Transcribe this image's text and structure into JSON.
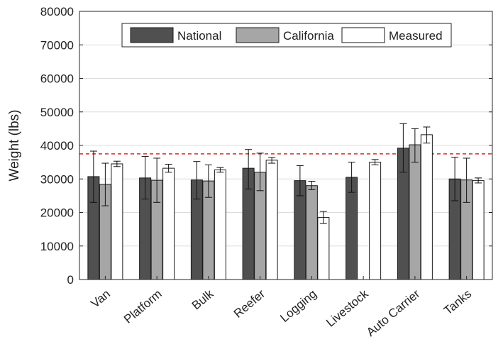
{
  "chart_data": {
    "type": "bar",
    "title": "",
    "xlabel": "",
    "ylabel": "Weight (lbs)",
    "ylim": [
      0,
      80000
    ],
    "yticks": [
      0,
      10000,
      20000,
      30000,
      40000,
      50000,
      60000,
      70000,
      80000
    ],
    "grid": "horizontal",
    "legend_position": "top-center",
    "categories": [
      "Van",
      "Platform",
      "Bulk",
      "Reefer",
      "Logging",
      "Livestock",
      "Auto Carrier",
      "Tanks"
    ],
    "series": [
      {
        "name": "National",
        "color": "#505050",
        "values": [
          30700,
          30300,
          29700,
          33200,
          29500,
          30500,
          39200,
          30000
        ],
        "err_low": [
          23000,
          24000,
          24000,
          27000,
          25000,
          26000,
          32000,
          23500
        ],
        "err_high": [
          38300,
          36700,
          35200,
          38800,
          34000,
          35000,
          46500,
          36500
        ]
      },
      {
        "name": "California",
        "color": "#a6a6a6",
        "values": [
          28400,
          29600,
          29400,
          32000,
          28000,
          null,
          40200,
          29700
        ],
        "err_low": [
          22000,
          23000,
          24500,
          26500,
          26800,
          null,
          35000,
          23000
        ],
        "err_high": [
          34700,
          36200,
          34200,
          37700,
          29300,
          null,
          45000,
          36200
        ]
      },
      {
        "name": "Measured",
        "color": "#ffffff",
        "values": [
          34500,
          33200,
          32700,
          35600,
          18500,
          35000,
          43200,
          29500
        ],
        "err_low": [
          33700,
          32000,
          32000,
          34700,
          16700,
          34200,
          40700,
          28800
        ],
        "err_high": [
          35300,
          34400,
          33400,
          36400,
          20300,
          35800,
          45500,
          30300
        ]
      }
    ],
    "reference_line": {
      "value": 37500,
      "color": "#e3262a",
      "style": "dashed"
    }
  }
}
